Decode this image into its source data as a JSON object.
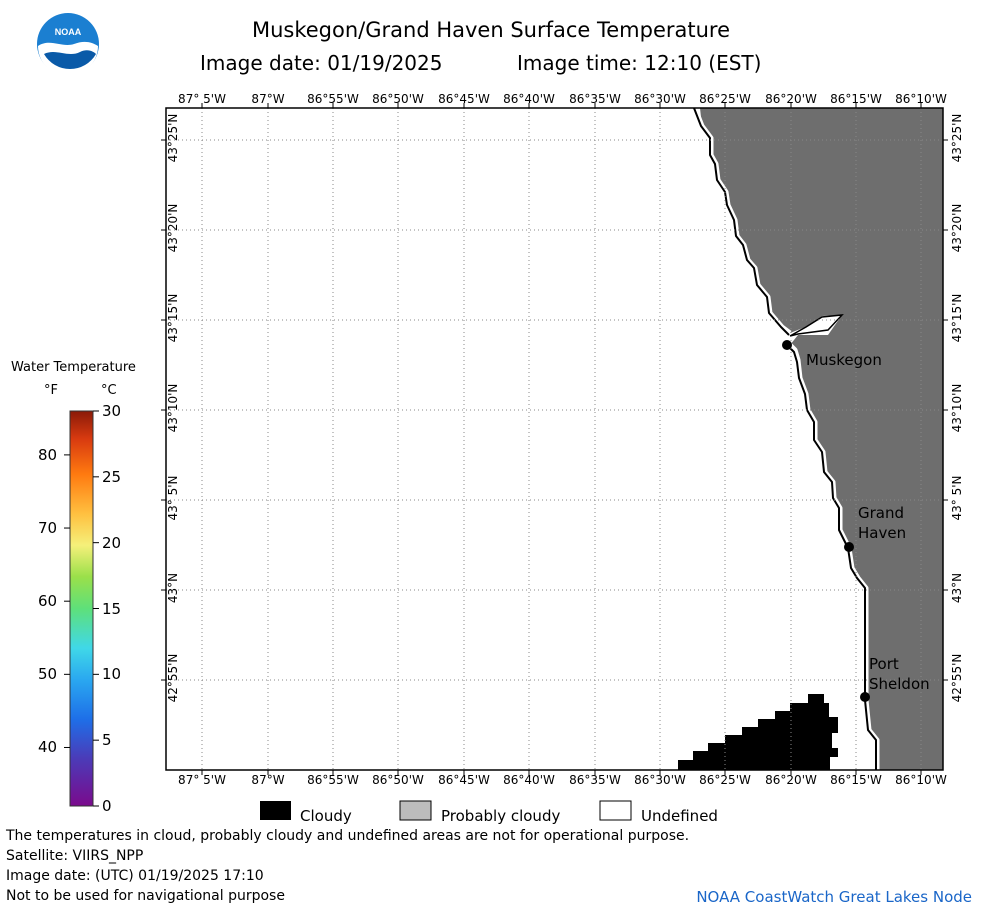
{
  "header": {
    "title": "Muskegon/Grand Haven Surface Temperature",
    "date_label": "Image date: 01/19/2025",
    "time_label": "Image time: 12:10 (EST)",
    "logo_text": "NOAA"
  },
  "map": {
    "lon_labels": [
      "87° 5'W",
      "87°W",
      "86°55'W",
      "86°50'W",
      "86°45'W",
      "86°40'W",
      "86°35'W",
      "86°30'W",
      "86°25'W",
      "86°20'W",
      "86°15'W",
      "86°10'W"
    ],
    "lat_labels": [
      "43°25'N",
      "43°20'N",
      "43°15'N",
      "43°10'N",
      "43° 5'N",
      "43°N",
      "42°55'N"
    ],
    "cities": [
      {
        "name_line1": "Muskegon",
        "name_line2": ""
      },
      {
        "name_line1": "Grand",
        "name_line2": "Haven"
      },
      {
        "name_line1": "Port",
        "name_line2": "Sheldon"
      }
    ],
    "colors": {
      "land": "#6e6e6e",
      "cloud": "#000000",
      "water": "#ffffff",
      "grid": "#888888"
    }
  },
  "legend": {
    "title": "Water Temperature",
    "unit_f": "°F",
    "unit_c": "°C",
    "f_ticks": [
      "80",
      "70",
      "60",
      "50",
      "40"
    ],
    "c_ticks": [
      "30",
      "25",
      "20",
      "15",
      "10",
      "5",
      "0"
    ]
  },
  "mask_legend": {
    "cloudy": "Cloudy",
    "probably_cloudy": "Probably cloudy",
    "undefined": "Undefined"
  },
  "footer": {
    "note": "The temperatures in cloud, probably cloudy and undefined areas are not for operational purpose.",
    "satellite": "Satellite: VIIRS_NPP",
    "utc_date": "Image date: (UTC) 01/19/2025  17:10",
    "nav_note": "Not to be used for navigational purpose",
    "credit": "NOAA CoastWatch Great Lakes Node"
  }
}
